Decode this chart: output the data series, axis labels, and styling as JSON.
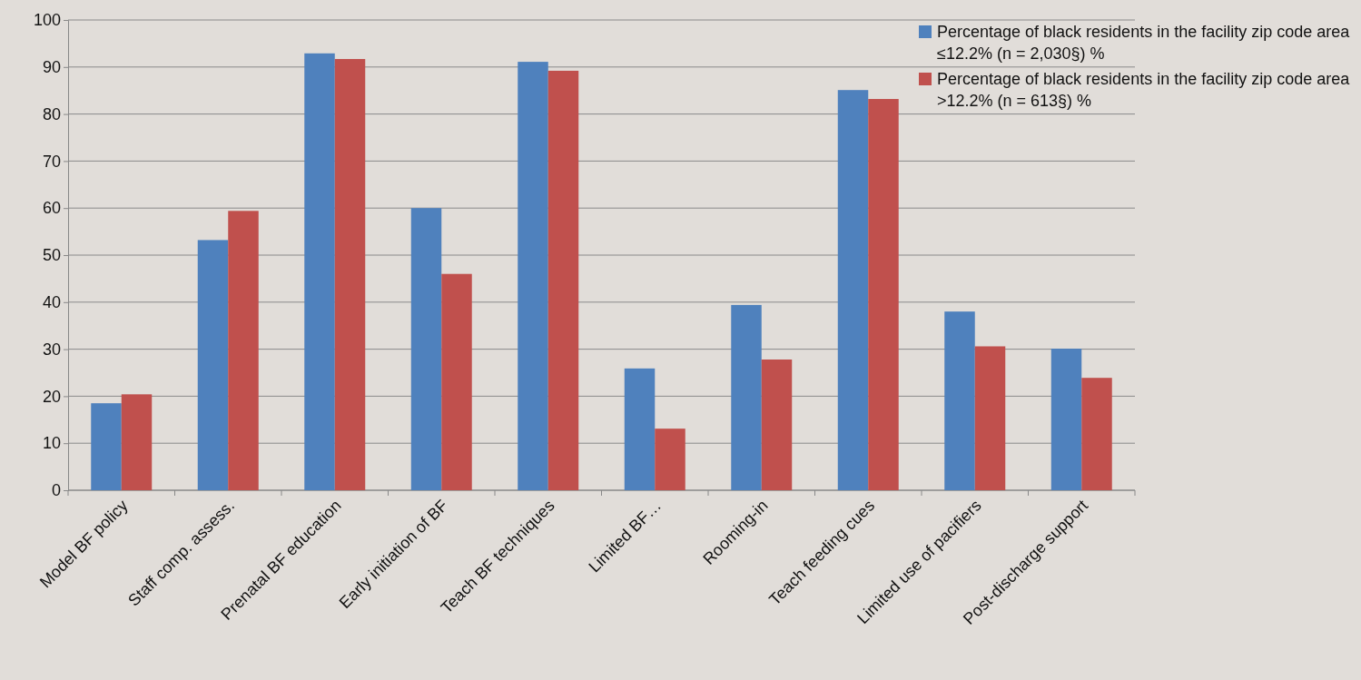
{
  "chart_data": {
    "type": "bar",
    "categories": [
      "Model BF policy",
      "Staff comp. assess.",
      "Prenatal BF education",
      "Early initiation of BF",
      "Teach BF techniques",
      "Limited BF…",
      "Rooming-in",
      "Teach feeding cues",
      "Limited use of pacifiers",
      "Post-discharge support"
    ],
    "series": [
      {
        "name": "Percentage of black residents in the facility zip code area  ≤12.2% (n = 2,030§) %",
        "color": "#4f81bd",
        "values": [
          18.5,
          53.2,
          92.9,
          60.0,
          91.1,
          25.9,
          39.4,
          85.1,
          38.0,
          30.1
        ]
      },
      {
        "name": "Percentage of black residents in the facility zip code area  >12.2% (n = 613§) %",
        "color": "#c0504d",
        "values": [
          20.4,
          59.4,
          91.7,
          46.0,
          89.2,
          13.1,
          27.8,
          83.2,
          30.6,
          23.9
        ]
      }
    ],
    "ylim": [
      0,
      100
    ],
    "yticks": [
      0,
      10,
      20,
      30,
      40,
      50,
      60,
      70,
      80,
      90,
      100
    ],
    "grid": "y",
    "legend": "top right"
  }
}
